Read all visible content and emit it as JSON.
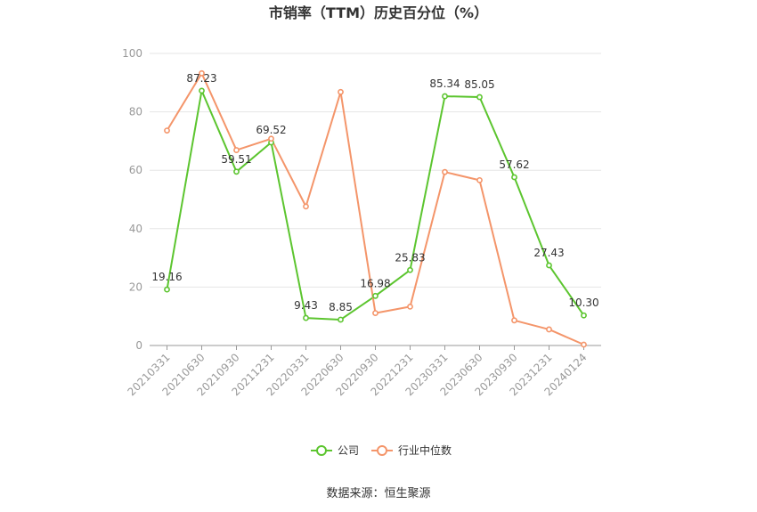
{
  "chart_data": {
    "type": "line",
    "title": "市销率（TTM）历史百分位（%）",
    "categories": [
      "20210331",
      "20210630",
      "20210930",
      "20211231",
      "20220331",
      "20220630",
      "20220930",
      "20221231",
      "20230331",
      "20230630",
      "20230930",
      "20231231",
      "20240124"
    ],
    "series": [
      {
        "name": "公司",
        "color": "#5cc52f",
        "values": [
          19.16,
          87.23,
          59.51,
          69.52,
          9.43,
          8.85,
          16.98,
          25.83,
          85.34,
          85.05,
          57.62,
          27.43,
          10.3
        ],
        "labels": [
          "19.16",
          "87.23",
          "59.51",
          "69.52",
          "9.43",
          "8.85",
          "16.98",
          "25.83",
          "85.34",
          "85.05",
          "57.62",
          "27.43",
          "10.30"
        ]
      },
      {
        "name": "行业中位数",
        "color": "#f4956a",
        "values": [
          73.6,
          93.2,
          66.9,
          70.8,
          47.6,
          86.8,
          11.1,
          13.3,
          59.4,
          56.6,
          8.6,
          5.5,
          0.3
        ]
      }
    ],
    "ylim": [
      0,
      100
    ],
    "yticks": [
      0,
      20,
      40,
      60,
      80,
      100
    ],
    "grid": true,
    "legend_position": "bottom"
  },
  "source_text": "数据来源：恒生聚源"
}
